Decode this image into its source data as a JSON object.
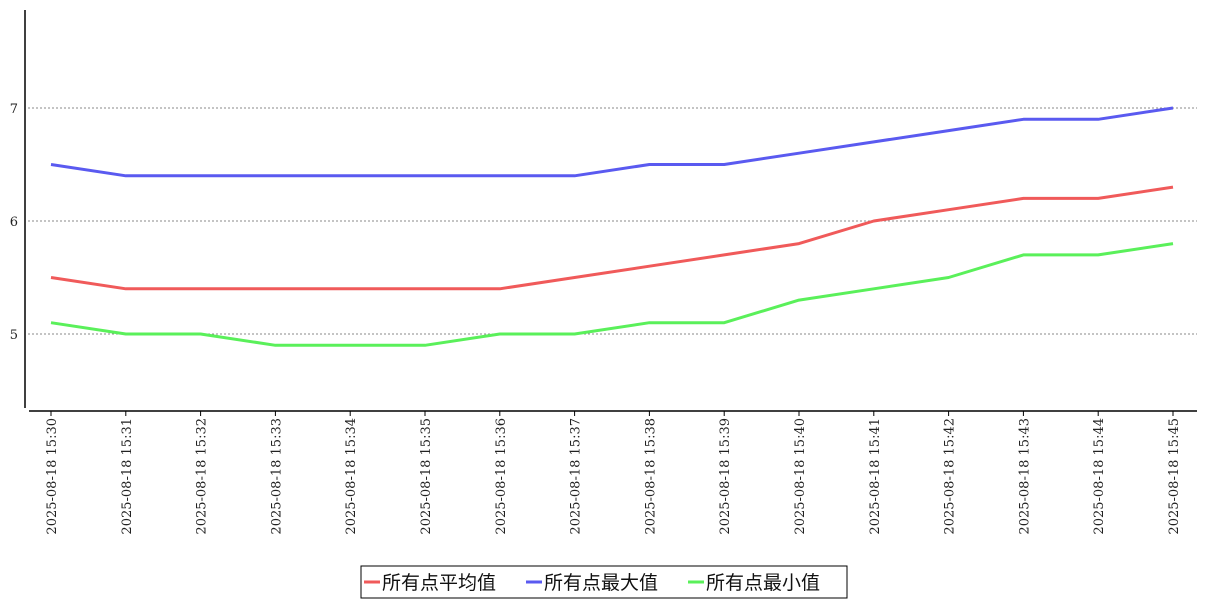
{
  "chart_data": {
    "type": "line",
    "title": "",
    "xlabel": "",
    "ylabel": "",
    "categories": [
      "2025-08-18 15:30",
      "2025-08-18 15:31",
      "2025-08-18 15:32",
      "2025-08-18 15:33",
      "2025-08-18 15:34",
      "2025-08-18 15:35",
      "2025-08-18 15:36",
      "2025-08-18 15:37",
      "2025-08-18 15:38",
      "2025-08-18 15:39",
      "2025-08-18 15:40",
      "2025-08-18 15:41",
      "2025-08-18 15:42",
      "2025-08-18 15:43",
      "2025-08-18 15:44",
      "2025-08-18 15:45"
    ],
    "yticks": [
      5,
      6,
      7
    ],
    "ylim": [
      4.33,
      7.87
    ],
    "grid": "horizontal-dashed",
    "legend_position": "bottom-center",
    "series": [
      {
        "name": "所有点平均值",
        "color": "#f05a5a",
        "values": [
          5.5,
          5.4,
          5.4,
          5.4,
          5.4,
          5.4,
          5.4,
          5.5,
          5.6,
          5.7,
          5.8,
          6.0,
          6.1,
          6.2,
          6.2,
          6.3
        ]
      },
      {
        "name": "所有点最大值",
        "color": "#5a5af0",
        "values": [
          6.5,
          6.4,
          6.4,
          6.4,
          6.4,
          6.4,
          6.4,
          6.4,
          6.5,
          6.5,
          6.6,
          6.7,
          6.8,
          6.9,
          6.9,
          7.0
        ]
      },
      {
        "name": "所有点最小值",
        "color": "#5af05a",
        "values": [
          5.1,
          5.0,
          5.0,
          4.9,
          4.9,
          4.9,
          5.0,
          5.0,
          5.1,
          5.1,
          5.3,
          5.4,
          5.5,
          5.7,
          5.7,
          5.8
        ]
      }
    ]
  }
}
